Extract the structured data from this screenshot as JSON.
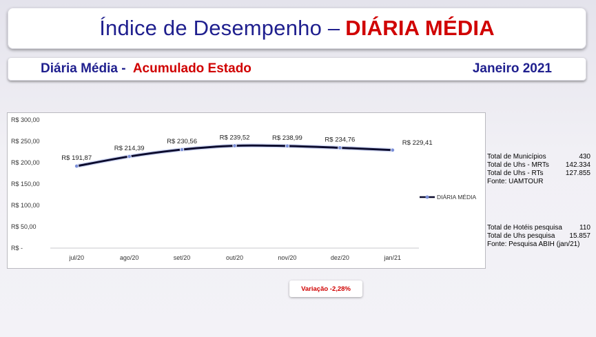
{
  "header": {
    "title_main": "Índice de Desempenho –",
    "title_accent": "DIÁRIA MÉDIA"
  },
  "subheader": {
    "left_main": "Diária Média -",
    "left_accent": "Acumulado Estado",
    "right": "Janeiro 2021"
  },
  "chart_data": {
    "type": "line",
    "categories": [
      "jul/20",
      "ago/20",
      "set/20",
      "out/20",
      "nov/20",
      "dez/20",
      "jan/21"
    ],
    "series": [
      {
        "name": "DIÁRIA MÉDIA",
        "values": [
          191.87,
          214.39,
          230.56,
          239.52,
          238.99,
          234.76,
          229.41
        ],
        "labels": [
          "R$ 191,87",
          "R$ 214,39",
          "R$ 230,56",
          "R$ 239,52",
          "R$ 238,99",
          "R$ 234,76",
          "R$ 229,41"
        ]
      }
    ],
    "ylim": [
      0,
      300
    ],
    "y_ticks": [
      0,
      50,
      100,
      150,
      200,
      250,
      300
    ],
    "y_tick_labels": [
      "R$ -",
      "R$ 50,00",
      "R$ 100,00",
      "R$ 150,00",
      "R$ 200,00",
      "R$ 250,00",
      "R$ 300,00"
    ],
    "grid": false,
    "legend_position": "right",
    "line_color": "#0b0b2e",
    "marker_color": "#7b8fd8"
  },
  "stats_primary": [
    {
      "label": "Total de Municípios",
      "value": "430"
    },
    {
      "label": "Total de Uhs - MRTs",
      "value": "142.334"
    },
    {
      "label": "Total de Uhs - RTs",
      "value": "127.855"
    },
    {
      "label": "Fonte: UAMTOUR",
      "value": ""
    }
  ],
  "stats_secondary": [
    {
      "label": "Total de Hotéis pesquisa",
      "value": "110"
    },
    {
      "label": "Total de Uhs pesquisa",
      "value": "15.857"
    },
    {
      "label": "Fonte: Pesquisa ABIH  (jan/21)",
      "value": ""
    }
  ],
  "variation": {
    "text": "Variação  -2,28%"
  }
}
